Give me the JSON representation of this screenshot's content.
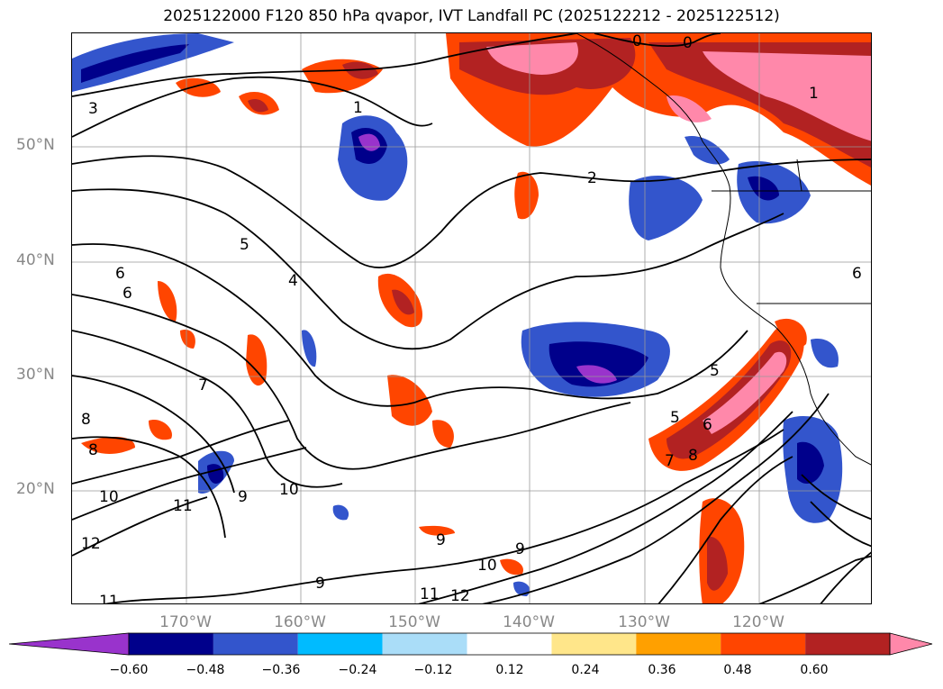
{
  "title": "2025122000 F120 850 hPa qvapor, IVT Landfall PC (2025122212 - 2025122512)",
  "map": {
    "region": "North Pacific",
    "lat_labels": [
      "50°N",
      "40°N",
      "30°N",
      "20°N"
    ],
    "lon_labels": [
      "170°W",
      "160°W",
      "150°W",
      "140°W",
      "130°W",
      "120°W"
    ],
    "grid": true,
    "contour_labels": [
      "0",
      "0",
      "1",
      "1",
      "2",
      "3",
      "4",
      "5",
      "5",
      "5",
      "6",
      "6",
      "6",
      "6",
      "7",
      "7",
      "8",
      "8",
      "8",
      "9",
      "9",
      "9",
      "9",
      "10",
      "10",
      "10",
      "11",
      "11",
      "11",
      "12",
      "12"
    ]
  },
  "colorbar": {
    "ticks": [
      "−0.60",
      "−0.48",
      "−0.36",
      "−0.24",
      "−0.12",
      "0.12",
      "0.24",
      "0.36",
      "0.48",
      "0.60"
    ],
    "colors": [
      "#9933cc",
      "#00008b",
      "#3355cc",
      "#00bbff",
      "#aaddf8",
      "#ffffff",
      "#ffe68a",
      "#ffa000",
      "#ff4500",
      "#b22222",
      "#ff88aa"
    ],
    "extend": "both"
  }
}
